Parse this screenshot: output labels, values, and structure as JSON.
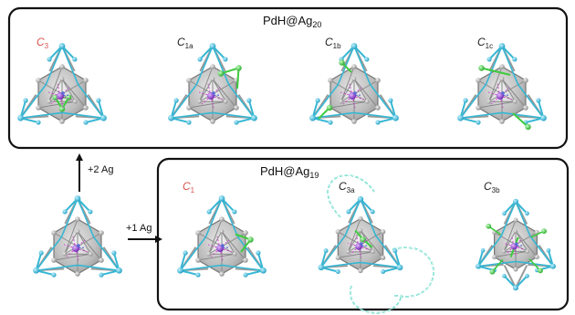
{
  "colors": {
    "panel_border": "#111111",
    "red_label": "#d9534f",
    "dark_label": "#222222",
    "cyan_atom": "#35b7d4",
    "green_atom": "#3ecb3e",
    "gray_metal": "#9a9a9a",
    "pd_atom": "#8a3fd1",
    "h_atom": "#5a6bd8",
    "dashed_path": "#38cfb9"
  },
  "top_panel": {
    "title": "PdH@Ag",
    "title_sub": "20",
    "isomers": [
      {
        "letter": "C",
        "sub": "3",
        "color": "red",
        "variant": "c3"
      },
      {
        "letter": "C",
        "sub": "1a",
        "color": "dark",
        "variant": "c1a"
      },
      {
        "letter": "C",
        "sub": "1b",
        "color": "dark",
        "variant": "c1b"
      },
      {
        "letter": "C",
        "sub": "1c",
        "color": "dark",
        "variant": "c1c"
      }
    ]
  },
  "bottom_panel": {
    "title": "PdH@Ag",
    "title_sub": "19",
    "isomers": [
      {
        "letter": "C",
        "sub": "1",
        "color": "red",
        "variant": "c1"
      },
      {
        "letter": "C",
        "sub": "3a",
        "color": "dark",
        "variant": "c3a"
      },
      {
        "letter": "C",
        "sub": "3b",
        "color": "dark",
        "variant": "c3b"
      }
    ]
  },
  "arrows": {
    "up_label": "+2 Ag",
    "right_label": "+1 Ag"
  }
}
